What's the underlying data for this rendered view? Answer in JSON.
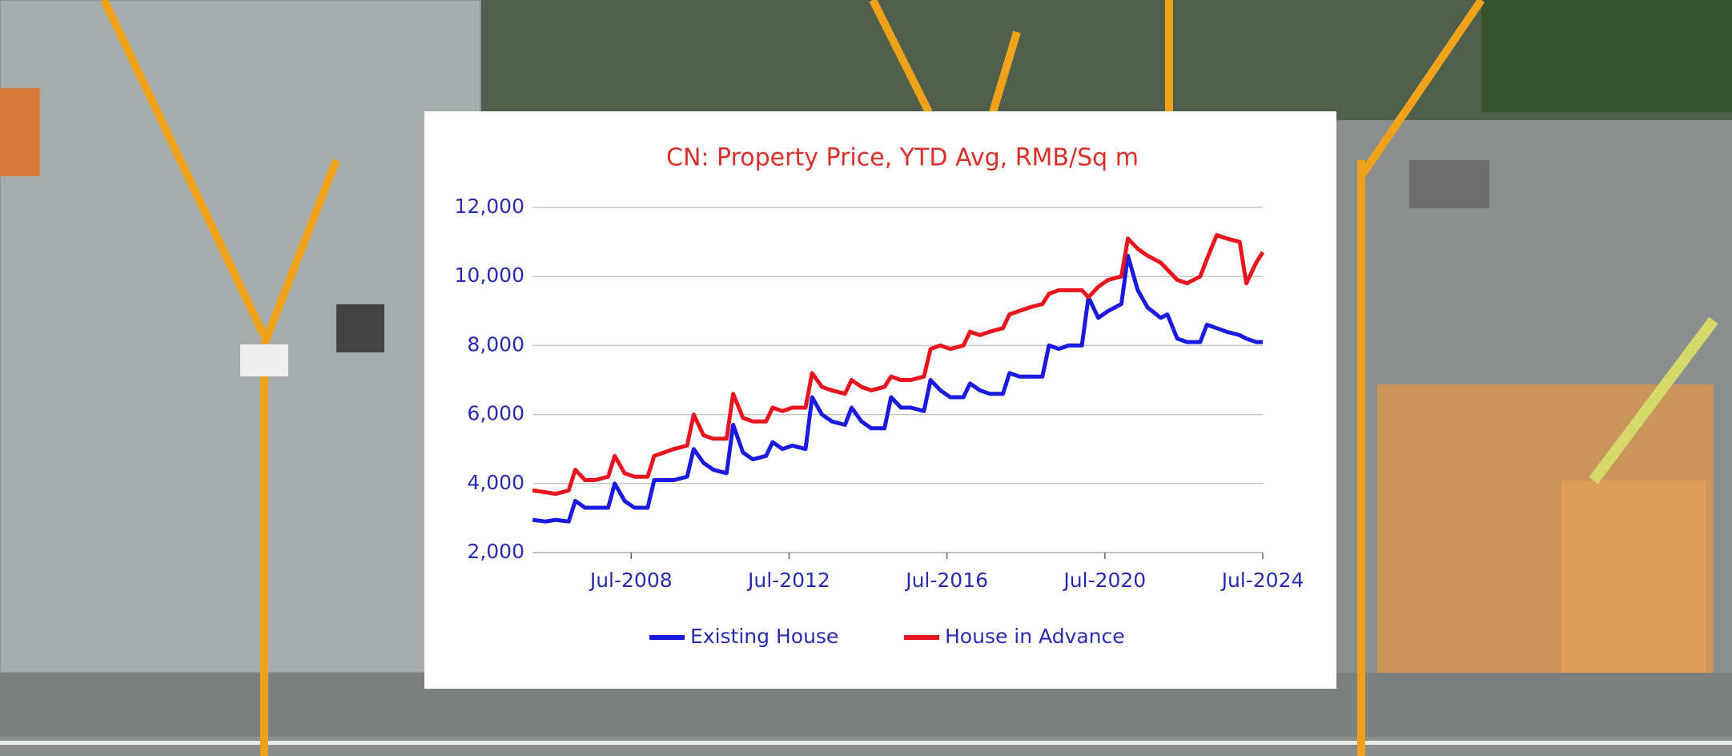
{
  "chart_data": {
    "type": "line",
    "title": "CN: Property Price, YTD Avg, RMB/Sq m",
    "x": [
      "2006-01",
      "2006-05",
      "2006-08",
      "2006-12",
      "2007-02",
      "2007-05",
      "2007-08",
      "2007-12",
      "2008-02",
      "2008-05",
      "2008-08",
      "2008-12",
      "2009-02",
      "2009-05",
      "2009-08",
      "2009-12",
      "2010-02",
      "2010-05",
      "2010-08",
      "2010-12",
      "2011-02",
      "2011-05",
      "2011-08",
      "2011-12",
      "2012-02",
      "2012-05",
      "2012-08",
      "2012-12",
      "2013-02",
      "2013-05",
      "2013-08",
      "2013-12",
      "2014-02",
      "2014-05",
      "2014-08",
      "2014-12",
      "2015-02",
      "2015-05",
      "2015-08",
      "2015-12",
      "2016-02",
      "2016-05",
      "2016-08",
      "2016-12",
      "2017-02",
      "2017-05",
      "2017-08",
      "2017-12",
      "2018-02",
      "2018-05",
      "2018-08",
      "2018-12",
      "2019-02",
      "2019-05",
      "2019-08",
      "2019-12",
      "2020-02",
      "2020-05",
      "2020-08",
      "2020-12",
      "2021-02",
      "2021-05",
      "2021-08",
      "2021-12",
      "2022-02",
      "2022-05",
      "2022-08",
      "2022-12",
      "2023-02",
      "2023-05",
      "2023-08",
      "2023-12",
      "2024-02",
      "2024-05",
      "2024-07"
    ],
    "series": [
      {
        "name": "Existing House",
        "color": "#1a1ae0",
        "values": [
          2950,
          2900,
          2950,
          2900,
          3500,
          3300,
          3300,
          3300,
          4000,
          3500,
          3300,
          3300,
          4100,
          4100,
          4100,
          4200,
          5000,
          4600,
          4400,
          4300,
          5700,
          4900,
          4700,
          4800,
          5200,
          5000,
          5100,
          5000,
          6500,
          6000,
          5800,
          5700,
          6200,
          5800,
          5600,
          5600,
          6500,
          6200,
          6200,
          6100,
          7000,
          6700,
          6500,
          6500,
          6900,
          6700,
          6600,
          6600,
          7200,
          7100,
          7100,
          7100,
          8000,
          7900,
          8000,
          8000,
          9400,
          8800,
          9000,
          9200,
          10600,
          9600,
          9100,
          8800,
          8900,
          8200,
          8100,
          8100,
          8600,
          8500,
          8400,
          8300,
          8200,
          8100,
          8100
        ]
      },
      {
        "name": "House in Advance",
        "color": "#e8141e",
        "values": [
          3800,
          3750,
          3700,
          3800,
          4400,
          4100,
          4100,
          4200,
          4800,
          4300,
          4200,
          4200,
          4800,
          4900,
          5000,
          5100,
          6000,
          5400,
          5300,
          5300,
          6600,
          5900,
          5800,
          5800,
          6200,
          6100,
          6200,
          6200,
          7200,
          6800,
          6700,
          6600,
          7000,
          6800,
          6700,
          6800,
          7100,
          7000,
          7000,
          7100,
          7900,
          8000,
          7900,
          8000,
          8400,
          8300,
          8400,
          8500,
          8900,
          9000,
          9100,
          9200,
          9500,
          9600,
          9600,
          9600,
          9400,
          9700,
          9900,
          10000,
          11100,
          10800,
          10600,
          10400,
          10200,
          9900,
          9800,
          10000,
          10500,
          11200,
          11100,
          11000,
          9800,
          10400,
          10700
        ]
      }
    ],
    "xlim": [
      "2006-01",
      "2024-07"
    ],
    "xticks": [
      {
        "value": "2008-07",
        "label": "Jul-2008"
      },
      {
        "value": "2012-07",
        "label": "Jul-2012"
      },
      {
        "value": "2016-07",
        "label": "Jul-2016"
      },
      {
        "value": "2020-07",
        "label": "Jul-2020"
      },
      {
        "value": "2024-07",
        "label": "Jul-2024"
      }
    ],
    "ylim": [
      2000,
      12000
    ],
    "yticks": [
      {
        "value": 2000,
        "label": "2,000"
      },
      {
        "value": 4000,
        "label": "4,000"
      },
      {
        "value": 6000,
        "label": "6,000"
      },
      {
        "value": 8000,
        "label": "8,000"
      },
      {
        "value": 10000,
        "label": "10,000"
      },
      {
        "value": 12000,
        "label": "12,000"
      }
    ],
    "grid": true,
    "legend": "bottom"
  }
}
